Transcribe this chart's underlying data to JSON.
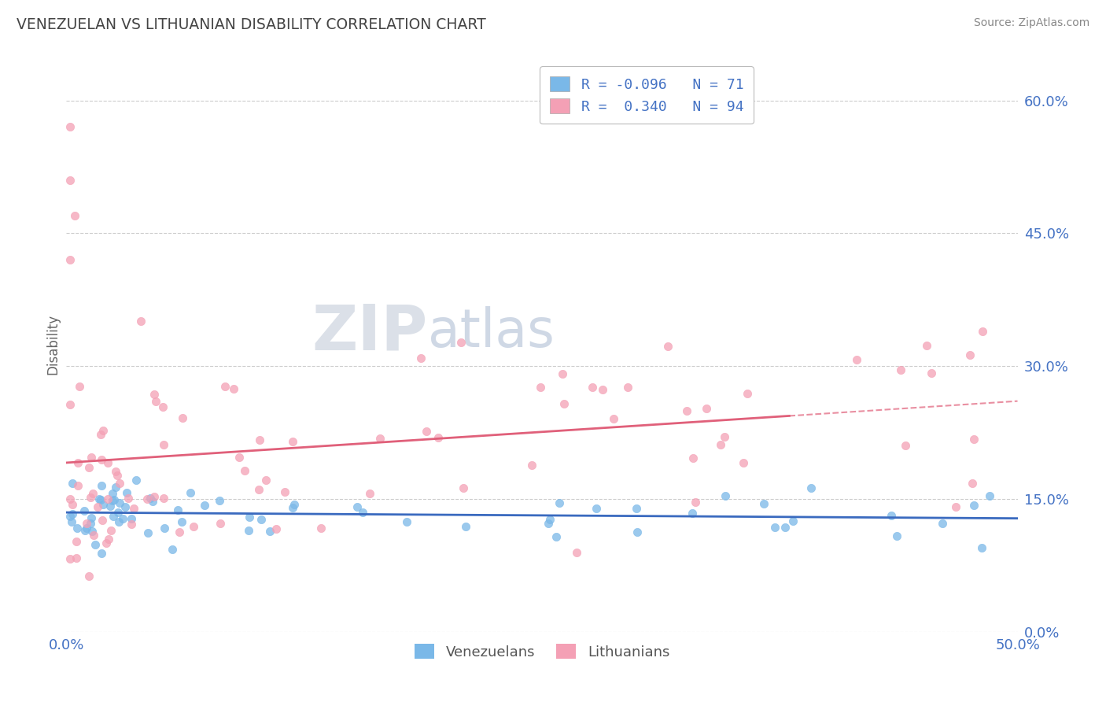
{
  "title": "VENEZUELAN VS LITHUANIAN DISABILITY CORRELATION CHART",
  "source": "Source: ZipAtlas.com",
  "ylabel": "Disability",
  "yticks": [
    0.0,
    0.15,
    0.3,
    0.45,
    0.6
  ],
  "ytick_labels": [
    "0.0%",
    "15.0%",
    "30.0%",
    "45.0%",
    "60.0%"
  ],
  "xlim": [
    0.0,
    0.5
  ],
  "ylim": [
    0.0,
    0.65
  ],
  "r_venezuelan": -0.096,
  "n_venezuelan": 71,
  "r_lithuanian": 0.34,
  "n_lithuanian": 94,
  "venezuelan_color": "#7ab8e8",
  "lithuanian_color": "#f4a0b5",
  "venezuelan_line_color": "#3a6abf",
  "lithuanian_line_color": "#e0607a",
  "background_color": "#ffffff",
  "grid_color": "#cccccc",
  "watermark_zip": "ZIP",
  "watermark_atlas": "atlas",
  "title_color": "#444444",
  "source_color": "#888888",
  "tick_color": "#4472c4"
}
